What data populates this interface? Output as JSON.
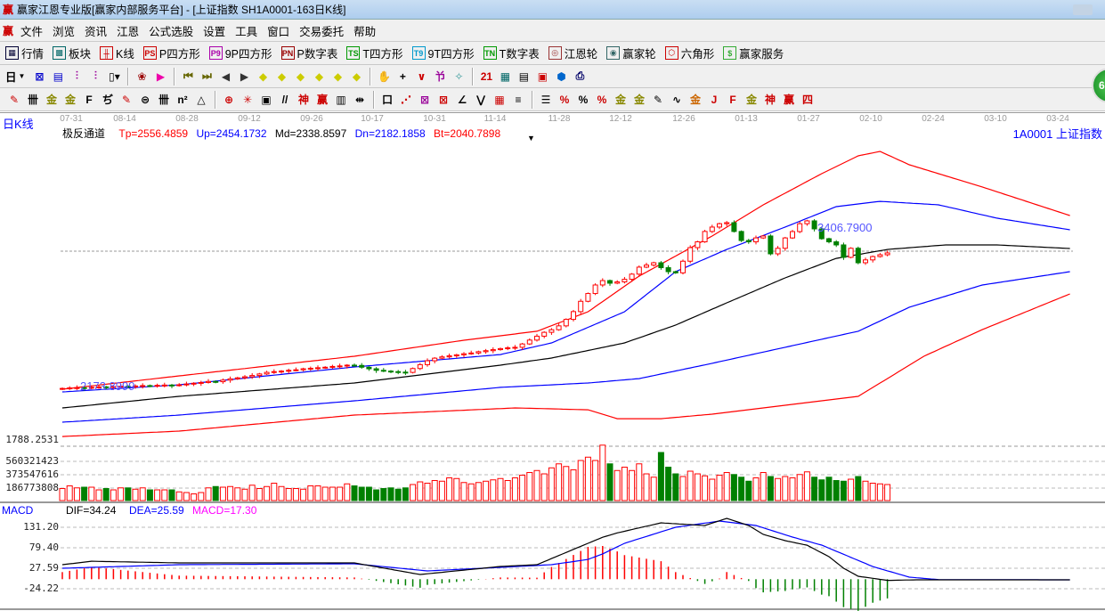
{
  "window": {
    "title": "赢家江恩专业版[赢家内部服务平台] - [上证指数  SH1A0001-163日K线]",
    "logo": "赢"
  },
  "menu": [
    "文件",
    "浏览",
    "资讯",
    "江恩",
    "公式选股",
    "设置",
    "工具",
    "窗口",
    "交易委托",
    "帮助"
  ],
  "toolbar1": [
    {
      "icon": "quote-table-icon",
      "label": "行情",
      "g": "▦",
      "c": "#003"
    },
    {
      "icon": "sector-grid-icon",
      "label": "板块",
      "g": "▩",
      "c": "#066"
    },
    {
      "icon": "kline-icon",
      "label": "K线",
      "g": "╫",
      "c": "#c00"
    },
    {
      "icon": "ps-icon",
      "label": "P四方形",
      "g": "PS",
      "c": "#c00"
    },
    {
      "icon": "p9-icon",
      "label": "9P四方形",
      "g": "P9",
      "c": "#a0a"
    },
    {
      "icon": "pn-icon",
      "label": "P数字表",
      "g": "PN",
      "c": "#900"
    },
    {
      "icon": "ts-icon",
      "label": "T四方形",
      "g": "TS",
      "c": "#090"
    },
    {
      "icon": "t9-icon",
      "label": "9T四方形",
      "g": "T9",
      "c": "#09c"
    },
    {
      "icon": "tn-icon",
      "label": "T数字表",
      "g": "TN",
      "c": "#090"
    },
    {
      "icon": "gann-wheel-icon",
      "label": "江恩轮",
      "g": "◎",
      "c": "#933"
    },
    {
      "icon": "winner-wheel-icon",
      "label": "赢家轮",
      "g": "◉",
      "c": "#366"
    },
    {
      "icon": "hexagon-icon",
      "label": "六角形",
      "g": "⬡",
      "c": "#c00"
    },
    {
      "icon": "dollar-icon",
      "label": "赢家服务",
      "g": "$",
      "c": "#3a3"
    }
  ],
  "toolbar2": {
    "period": "日",
    "icons": [
      [
        "chart-style-icon",
        "⊠",
        "#00c"
      ],
      [
        "report-icon",
        "▤",
        "#00c"
      ],
      [
        "bar3-icon",
        "⫶",
        "#909"
      ],
      [
        "bar9-icon",
        "⫶",
        "#909"
      ],
      [
        "candle-dropdown-icon",
        "▯▾",
        "#000"
      ],
      [
        "sep"
      ],
      [
        "pattern-icon",
        "❀",
        "#900"
      ],
      [
        "flag-icon",
        "▶",
        "#e0a"
      ],
      [
        "sep"
      ],
      [
        "first-icon",
        "⏮",
        "#660"
      ],
      [
        "last-icon",
        "⏭",
        "#660"
      ],
      [
        "prev-icon",
        "◀",
        "#333"
      ],
      [
        "next-icon",
        "▶",
        "#333"
      ],
      [
        "left-diamond-icon",
        "◆",
        "#cc0"
      ],
      [
        "right-diamond-icon",
        "◆",
        "#cc0"
      ],
      [
        "expand-h-icon",
        "◆",
        "#cc0"
      ],
      [
        "shrink-icon",
        "◆",
        "#cc0"
      ],
      [
        "expand-icon",
        "◆",
        "#cc0"
      ],
      [
        "expand-v-icon",
        "◆",
        "#cc0"
      ],
      [
        "sep"
      ],
      [
        "hand-icon",
        "✋",
        "#333"
      ],
      [
        "crosshair-icon",
        "+",
        "#000"
      ],
      [
        "line-icon",
        "∨",
        "#c00"
      ],
      [
        "tool-icon",
        "兯",
        "#909"
      ],
      [
        "sync-icon",
        "✧",
        "#399"
      ],
      [
        "sep"
      ],
      [
        "calendar-icon",
        "21",
        "#c00"
      ],
      [
        "calculator-icon",
        "▦",
        "#066"
      ],
      [
        "notes-icon",
        "▤",
        "#000"
      ],
      [
        "save-icon",
        "▣",
        "#c00"
      ],
      [
        "network-icon",
        "⬢",
        "#06c"
      ],
      [
        "printer-icon",
        "⎙",
        "#006"
      ]
    ]
  },
  "toolbar3": [
    [
      "pen-icon",
      "✎",
      "#c00"
    ],
    [
      "gann-lines-icon",
      "卌",
      "#000"
    ],
    [
      "gold-line-icon",
      "金",
      "#880"
    ],
    [
      "gold-line2-icon",
      "金",
      "#880"
    ],
    [
      "fib-icon",
      "F",
      "#000"
    ],
    [
      "spiral-icon",
      "ぢ",
      "#000"
    ],
    [
      "pen2-icon",
      "✎",
      "#c00"
    ],
    [
      "circle-icon",
      "⊜",
      "#000"
    ],
    [
      "parallel-icon",
      "卌",
      "#000"
    ],
    [
      "n2-icon",
      "n²",
      "#000"
    ],
    [
      "triangle-icon",
      "△",
      "#000"
    ],
    [
      "sep"
    ],
    [
      "target-icon",
      "⊕",
      "#c00"
    ],
    [
      "star-target-icon",
      "✳",
      "#c00"
    ],
    [
      "square-icon",
      "▣",
      "#000"
    ],
    [
      "angle-lines-icon",
      "//",
      "#000"
    ],
    [
      "god-icon",
      "神",
      "#c00"
    ],
    [
      "win-icon",
      "赢",
      "#c00"
    ],
    [
      "ruler-icon",
      "▥",
      "#000"
    ],
    [
      "measure-icon",
      "⇹",
      "#000"
    ],
    [
      "sep"
    ],
    [
      "box-icon",
      "口",
      "#000"
    ],
    [
      "fan-icon",
      "⋰",
      "#c00"
    ],
    [
      "gann-box-icon",
      "⊠",
      "#909"
    ],
    [
      "gann-box2-icon",
      "⊠",
      "#c00"
    ],
    [
      "fan2-icon",
      "∠",
      "#000"
    ],
    [
      "wave-icon",
      "⋁",
      "#000"
    ],
    [
      "grid-icon",
      "▦",
      "#c00"
    ],
    [
      "hatch-icon",
      "≡",
      "#000"
    ],
    [
      "sep"
    ],
    [
      "list-icon",
      "☰",
      "#000"
    ],
    [
      "percent-line-icon",
      "%",
      "#c00"
    ],
    [
      "percent-icon",
      "%",
      "#000"
    ],
    [
      "percent2-icon",
      "%",
      "#c00"
    ],
    [
      "gold-circle-icon",
      "金",
      "#880"
    ],
    [
      "gold-lines-icon",
      "金",
      "#880"
    ],
    [
      "pen3-icon",
      "✎",
      "#000"
    ],
    [
      "sine-icon",
      "∿",
      "#000"
    ],
    [
      "gold-box-icon",
      "金",
      "#c60"
    ],
    [
      "j-fan-icon",
      "J",
      "#c00"
    ],
    [
      "f-fan-icon",
      "F",
      "#c00"
    ],
    [
      "gold-fan-icon",
      "金",
      "#880"
    ],
    [
      "god-fan-icon",
      "神",
      "#c00"
    ],
    [
      "win-fan-icon",
      "赢",
      "#c00"
    ],
    [
      "four-fan-icon",
      "四",
      "#c00"
    ]
  ],
  "chart": {
    "period_label": "日K线",
    "indicator_name": "极反通道",
    "tp": "Tp=2556.4859",
    "up": "Up=2454.1732",
    "md": "Md=2338.8597",
    "dn": "Dn=2182.1858",
    "bt": "Bt=2040.7898",
    "symbol": "1A0001  上证指数",
    "high_label": "3406.7900",
    "low_label": "2173.8999",
    "price_axis_label": "1788.2531",
    "dates": [
      "07-31",
      "08-14",
      "08-28",
      "09-12",
      "09-26",
      "10-17",
      "10-31",
      "11-14",
      "11-28",
      "12-12",
      "12-26",
      "01-13",
      "01-27",
      "02-10",
      "02-24",
      "03-10",
      "03-24"
    ],
    "vol_axis": [
      "560321423",
      "373547616",
      "186773808"
    ],
    "macd_name": "MACD",
    "dif": "DIF=34.24",
    "dea": "DEA=25.59",
    "macd": "MACD=17.30",
    "macd_axis": [
      "131.20",
      "79.40",
      "27.59",
      "-24.22"
    ]
  },
  "colors": {
    "up": "#ff0000",
    "down": "#008000",
    "bg": "#ffffff",
    "dif": "#000000",
    "dea": "#0000ff",
    "macd_label": "#ff00ff"
  },
  "chart_data": {
    "type": "candlestick",
    "ylim": [
      1719,
      4068
    ],
    "close": [
      2166,
      2170,
      2172,
      2168,
      2175,
      2178,
      2174,
      2180,
      2183,
      2179,
      2185,
      2188,
      2184,
      2190,
      2192,
      2188,
      2194,
      2200,
      2206,
      2212,
      2220,
      2218,
      2230,
      2240,
      2248,
      2256,
      2266,
      2278,
      2290,
      2296,
      2300,
      2306,
      2310,
      2318,
      2322,
      2326,
      2330,
      2336,
      2340,
      2346,
      2344,
      2330,
      2318,
      2306,
      2300,
      2296,
      2292,
      2290,
      2320,
      2350,
      2380,
      2400,
      2410,
      2418,
      2426,
      2434,
      2440,
      2450,
      2458,
      2466,
      2474,
      2480,
      2484,
      2510,
      2540,
      2570,
      2600,
      2620,
      2650,
      2700,
      2760,
      2840,
      2900,
      2966,
      3000,
      2980,
      2990,
      3010,
      3050,
      3104,
      3120,
      3138,
      3100,
      3069,
      3060,
      3150,
      3255,
      3300,
      3380,
      3414,
      3440,
      3448,
      3380,
      3310,
      3300,
      3330,
      3345,
      3207,
      3250,
      3330,
      3379,
      3440,
      3462,
      3400,
      3324,
      3300,
      3276,
      3180,
      3250,
      3138,
      3160,
      3186,
      3200,
      3214
    ],
    "volume": [
      180000000.0,
      220000000.0,
      190000000.0,
      200000000.0,
      200000000.0,
      160000000.0,
      180000000.0,
      160000000.0,
      190000000.0,
      190000000.0,
      170000000.0,
      190000000.0,
      160000000.0,
      160000000.0,
      160000000.0,
      160000000.0,
      130000000.0,
      120000000.0,
      100000000.0,
      120000000.0,
      190000000.0,
      210000000.0,
      200000000.0,
      210000000.0,
      190000000.0,
      170000000.0,
      230000000.0,
      180000000.0,
      210000000.0,
      260000000.0,
      210000000.0,
      180000000.0,
      180000000.0,
      170000000.0,
      220000000.0,
      220000000.0,
      200000000.0,
      200000000.0,
      200000000.0,
      250000000.0,
      220000000.0,
      200000000.0,
      200000000.0,
      160000000.0,
      180000000.0,
      190000000.0,
      170000000.0,
      190000000.0,
      240000000.0,
      280000000.0,
      260000000.0,
      300000000.0,
      290000000.0,
      340000000.0,
      330000000.0,
      270000000.0,
      250000000.0,
      270000000.0,
      290000000.0,
      310000000.0,
      330000000.0,
      300000000.0,
      340000000.0,
      380000000.0,
      420000000.0,
      450000000.0,
      400000000.0,
      490000000.0,
      550000000.0,
      510000000.0,
      460000000.0,
      600000000.0,
      650000000.0,
      600000000.0,
      830000000.0,
      550000000.0,
      450000000.0,
      500000000.0,
      450000000.0,
      550000000.0,
      400000000.0,
      350000000.0,
      720000000.0,
      500000000.0,
      400000000.0,
      360000000.0,
      440000000.0,
      400000000.0,
      370000000.0,
      320000000.0,
      380000000.0,
      420000000.0,
      390000000.0,
      350000000.0,
      290000000.0,
      340000000.0,
      420000000.0,
      360000000.0,
      330000000.0,
      360000000.0,
      340000000.0,
      390000000.0,
      430000000.0,
      350000000.0,
      310000000.0,
      350000000.0,
      300000000.0,
      290000000.0,
      320000000.0,
      360000000.0,
      290000000.0,
      260000000.0,
      250000000.0,
      240000000.0
    ],
    "bands": {
      "Tp": [
        [
          0,
          2160
        ],
        [
          16,
          2263
        ],
        [
          40,
          2415
        ],
        [
          55,
          2539
        ],
        [
          65,
          2608
        ],
        [
          72,
          2759
        ],
        [
          79,
          3035
        ],
        [
          89,
          3345
        ],
        [
          96,
          3586
        ],
        [
          104,
          3827
        ],
        [
          109,
          3965
        ],
        [
          112,
          3999
        ],
        [
          116,
          3896
        ],
        [
          126,
          3724
        ],
        [
          138,
          3503
        ]
      ],
      "Up": [
        [
          0,
          2139
        ],
        [
          16,
          2194
        ],
        [
          40,
          2332
        ],
        [
          60,
          2428
        ],
        [
          67,
          2518
        ],
        [
          77,
          2759
        ],
        [
          84,
          3069
        ],
        [
          91,
          3241
        ],
        [
          99,
          3414
        ],
        [
          106,
          3572
        ],
        [
          112,
          3613
        ],
        [
          120,
          3586
        ],
        [
          128,
          3483
        ],
        [
          138,
          3393
        ]
      ],
      "Md": [
        [
          0,
          2015
        ],
        [
          16,
          2105
        ],
        [
          40,
          2208
        ],
        [
          60,
          2346
        ],
        [
          67,
          2401
        ],
        [
          77,
          2518
        ],
        [
          84,
          2656
        ],
        [
          91,
          2828
        ],
        [
          99,
          3021
        ],
        [
          106,
          3172
        ],
        [
          113,
          3241
        ],
        [
          121,
          3276
        ],
        [
          128,
          3276
        ],
        [
          138,
          3248
        ]
      ],
      "Dn": [
        [
          0,
          1905
        ],
        [
          16,
          1960
        ],
        [
          40,
          2070
        ],
        [
          60,
          2174
        ],
        [
          72,
          2208
        ],
        [
          79,
          2242
        ],
        [
          89,
          2360
        ],
        [
          99,
          2484
        ],
        [
          109,
          2608
        ],
        [
          116,
          2794
        ],
        [
          126,
          2966
        ],
        [
          138,
          3069
        ]
      ],
      "Bt": [
        [
          0,
          1794
        ],
        [
          16,
          1836
        ],
        [
          40,
          1960
        ],
        [
          62,
          2015
        ],
        [
          72,
          2001
        ],
        [
          76,
          1932
        ],
        [
          82,
          1932
        ],
        [
          89,
          1967
        ],
        [
          99,
          2036
        ],
        [
          109,
          2105
        ],
        [
          113,
          2242
        ],
        [
          118,
          2415
        ],
        [
          126,
          2621
        ],
        [
          138,
          2897
        ]
      ]
    },
    "macd": {
      "ylim": [
        -80,
        160
      ],
      "dif": [
        [
          0,
          36.7
        ],
        [
          4,
          45.4
        ],
        [
          16,
          41.2
        ],
        [
          40,
          41.2
        ],
        [
          49,
          11.9
        ],
        [
          60,
          32.2
        ],
        [
          65,
          36.7
        ],
        [
          72,
          90.8
        ],
        [
          74,
          106
        ],
        [
          76,
          117
        ],
        [
          82,
          142.5
        ],
        [
          88,
          135.8
        ],
        [
          91,
          153.8
        ],
        [
          94,
          135.8
        ],
        [
          96,
          113.3
        ],
        [
          99,
          97.5
        ],
        [
          102,
          86
        ],
        [
          105,
          57
        ],
        [
          107,
          27.7
        ],
        [
          109,
          7.5
        ],
        [
          113,
          -3
        ],
        [
          117,
          -1.6
        ],
        [
          138,
          -1.6
        ]
      ],
      "dea": [
        [
          0,
          27.7
        ],
        [
          16,
          36.7
        ],
        [
          40,
          39
        ],
        [
          50,
          20.9
        ],
        [
          60,
          30
        ],
        [
          67,
          36.7
        ],
        [
          72,
          50
        ],
        [
          74,
          64
        ],
        [
          77,
          90.8
        ],
        [
          84,
          131.3
        ],
        [
          90,
          147
        ],
        [
          95,
          135.8
        ],
        [
          100,
          106.5
        ],
        [
          104,
          86.2
        ],
        [
          107,
          63
        ],
        [
          111,
          32
        ],
        [
          116,
          5.2
        ],
        [
          120,
          -1
        ],
        [
          138,
          -1.6
        ]
      ]
    }
  }
}
